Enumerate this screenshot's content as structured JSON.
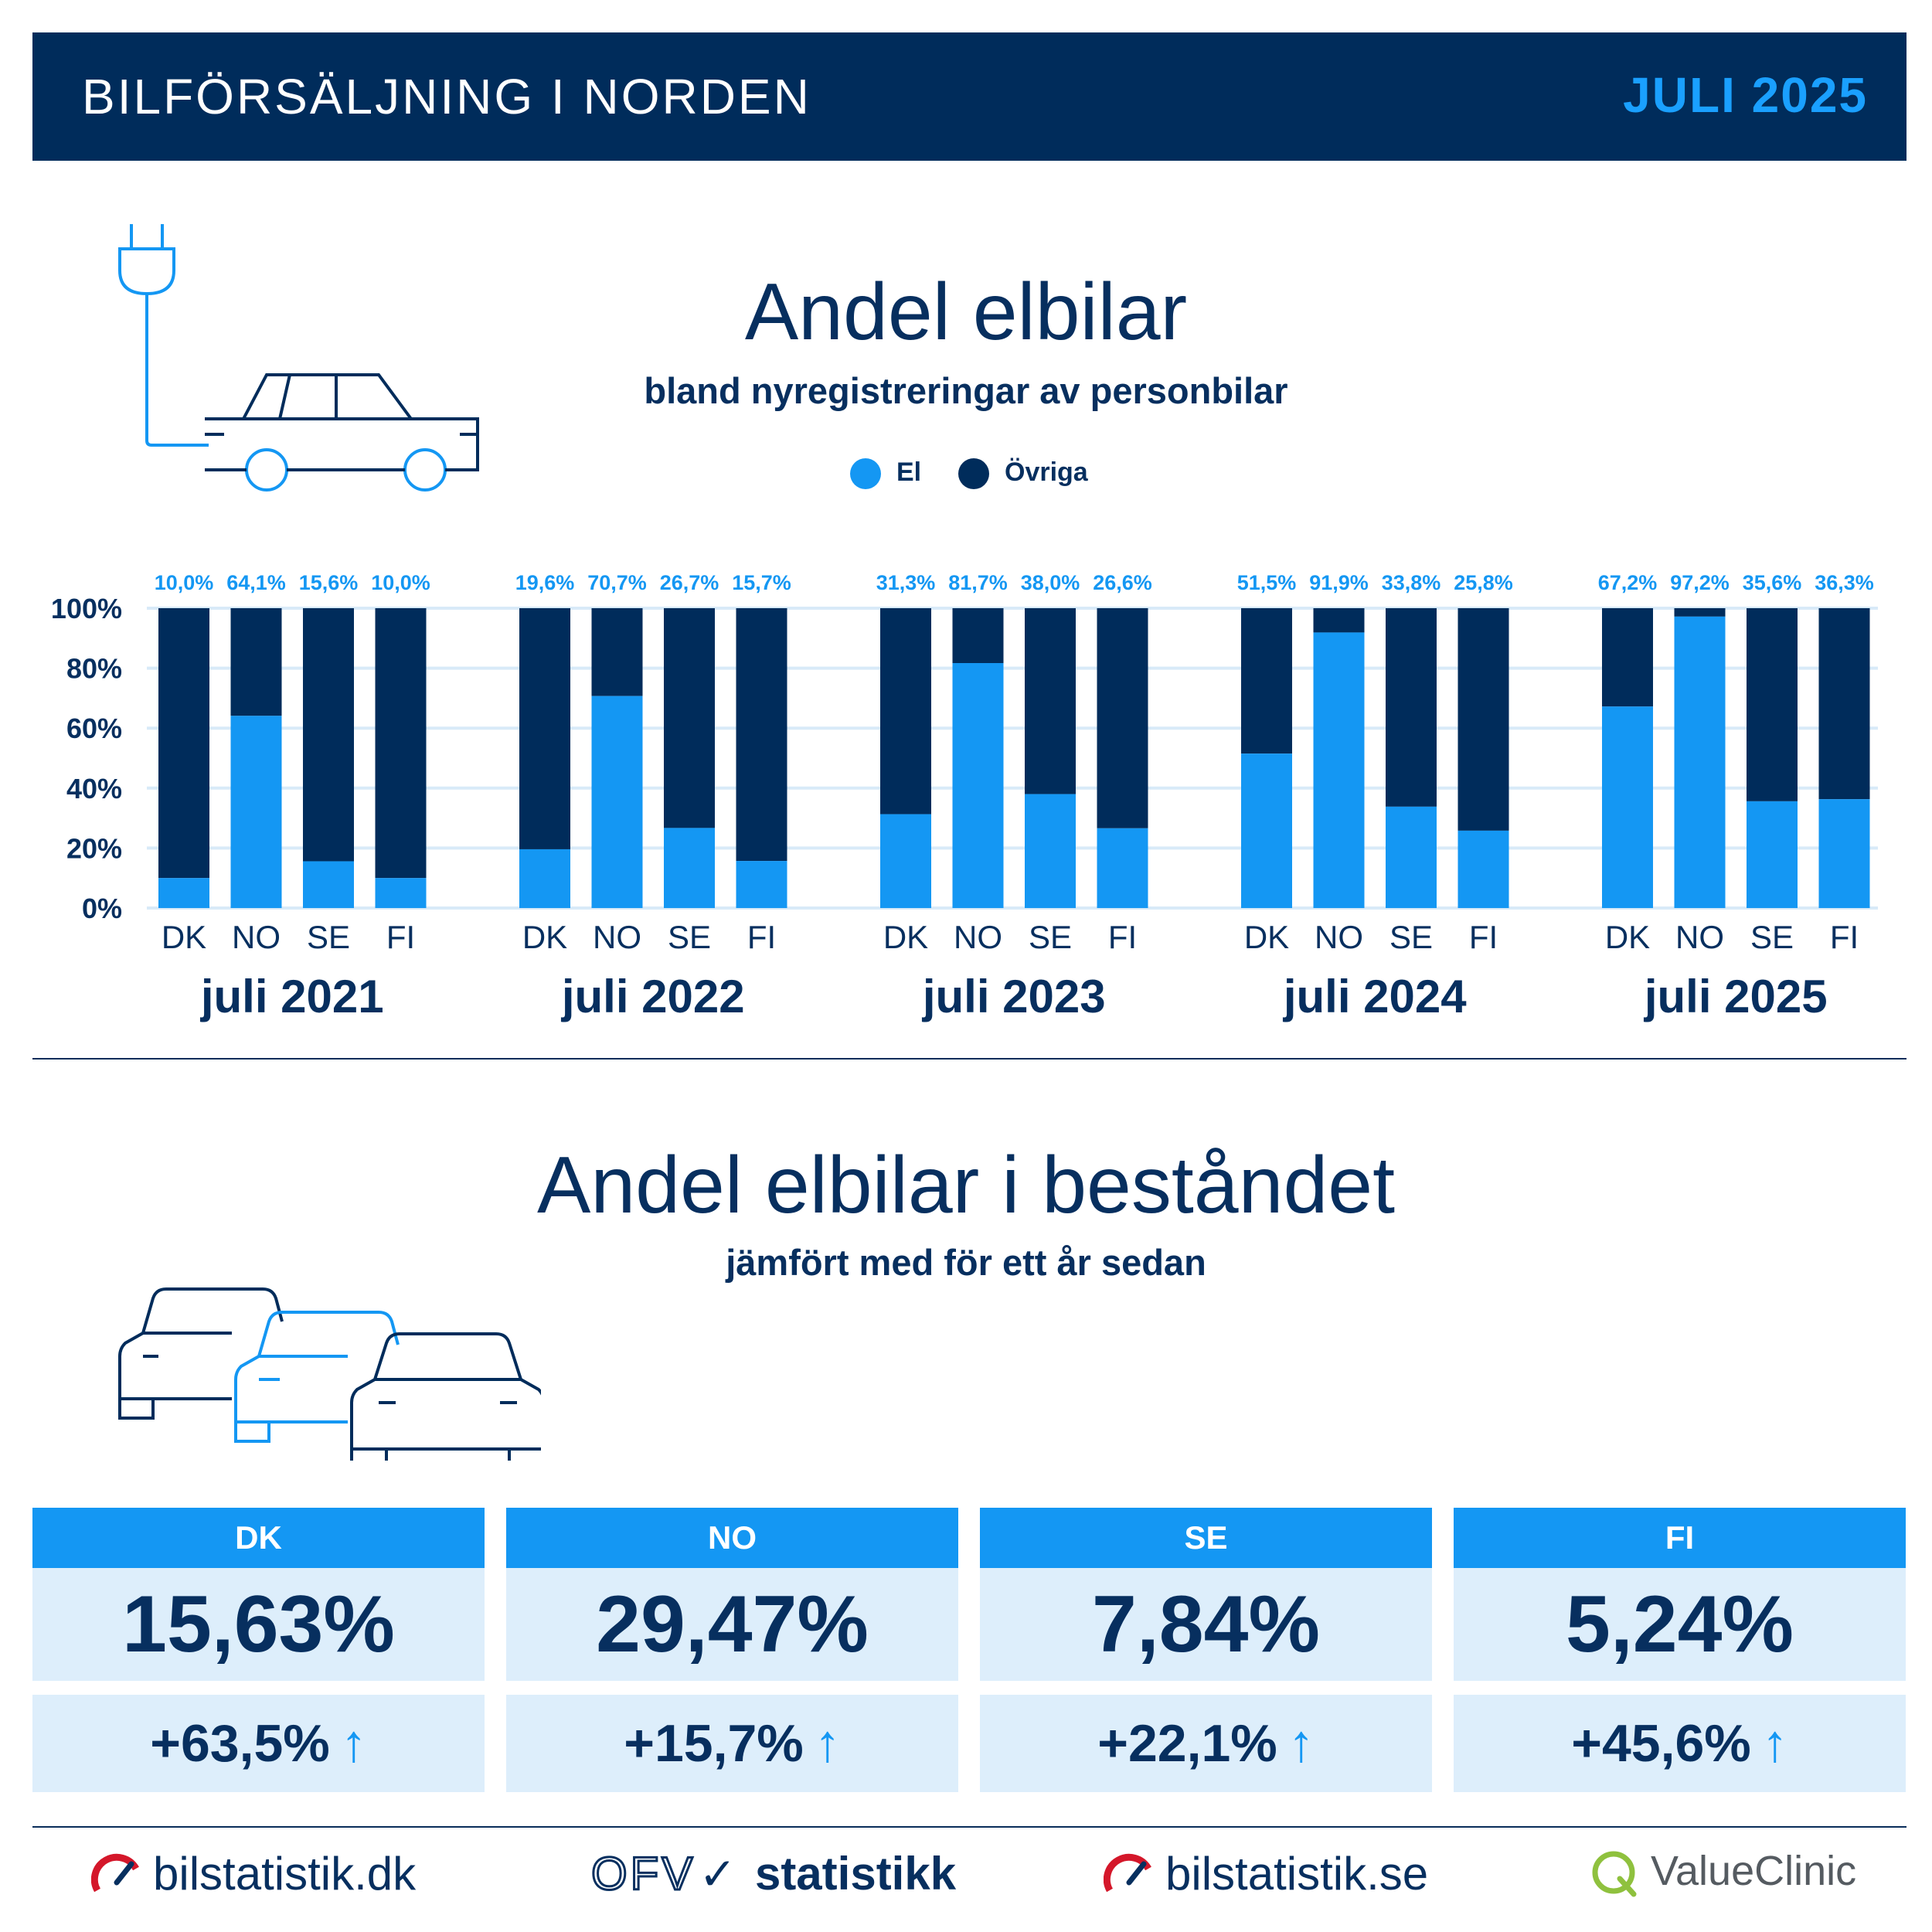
{
  "header": {
    "title": "BILFÖRSÄLJNING I NORDEN",
    "date": "JULI 2025"
  },
  "section1": {
    "title": "Andel elbilar",
    "subtitle": "bland nyregistreringar av personbilar"
  },
  "legend": {
    "el": "El",
    "other": "Övriga",
    "el_color": "#1497f3",
    "other_color": "#002c5b"
  },
  "chart_data": {
    "type": "bar",
    "stacked": true,
    "ylim": [
      0,
      100
    ],
    "yticks": [
      "0%",
      "20%",
      "40%",
      "60%",
      "80%",
      "100%"
    ],
    "grid": true,
    "groups": [
      {
        "label": "juli 2021",
        "categories": [
          "DK",
          "NO",
          "SE",
          "FI"
        ],
        "el": [
          10.0,
          64.1,
          15.6,
          10.0
        ],
        "el_labels": [
          "10,0%",
          "64,1%",
          "15,6%",
          "10,0%"
        ]
      },
      {
        "label": "juli 2022",
        "categories": [
          "DK",
          "NO",
          "SE",
          "FI"
        ],
        "el": [
          19.6,
          70.7,
          26.7,
          15.7
        ],
        "el_labels": [
          "19,6%",
          "70,7%",
          "26,7%",
          "15,7%"
        ]
      },
      {
        "label": "juli 2023",
        "categories": [
          "DK",
          "NO",
          "SE",
          "FI"
        ],
        "el": [
          31.3,
          81.7,
          38.0,
          26.6
        ],
        "el_labels": [
          "31,3%",
          "81,7%",
          "38,0%",
          "26,6%"
        ]
      },
      {
        "label": "juli 2024",
        "categories": [
          "DK",
          "NO",
          "SE",
          "FI"
        ],
        "el": [
          51.5,
          91.9,
          33.8,
          25.8
        ],
        "el_labels": [
          "51,5%",
          "91,9%",
          "33,8%",
          "25,8%"
        ]
      },
      {
        "label": "juli 2025",
        "categories": [
          "DK",
          "NO",
          "SE",
          "FI"
        ],
        "el": [
          67.2,
          97.2,
          35.6,
          36.3
        ],
        "el_labels": [
          "67,2%",
          "97,2%",
          "35,6%",
          "36,3%"
        ]
      }
    ],
    "series": [
      {
        "name": "El"
      },
      {
        "name": "Övriga"
      }
    ]
  },
  "section2": {
    "title": "Andel elbilar i beståndet",
    "subtitle": "jämfört med för ett år sedan"
  },
  "stats": [
    {
      "country": "DK",
      "value": "15,63%",
      "change": "+63,5%"
    },
    {
      "country": "NO",
      "value": "29,47%",
      "change": "+15,7%"
    },
    {
      "country": "SE",
      "value": "7,84%",
      "change": "+22,1%"
    },
    {
      "country": "FI",
      "value": "5,24%",
      "change": "+45,6%"
    }
  ],
  "arrow": "↑",
  "footer": {
    "logos": [
      "bilstatistik.dk",
      "OFV",
      "statistikk",
      "bilstatistik.se",
      "ValueClinic"
    ]
  }
}
